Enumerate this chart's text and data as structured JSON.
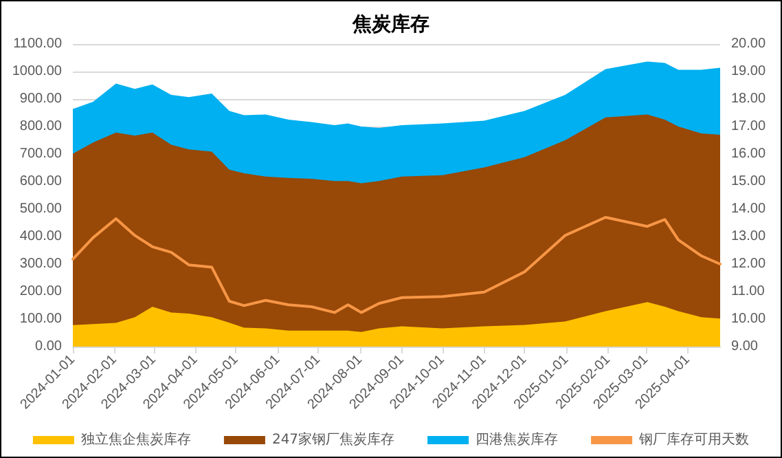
{
  "chart_data": {
    "type": "area",
    "title": "焦炭库存",
    "stacked": true,
    "x": [
      "2024-01-01",
      "2024-01-16",
      "2024-02-02",
      "2024-02-16",
      "2024-02-29",
      "2024-03-14",
      "2024-03-27",
      "2024-04-13",
      "2024-04-26",
      "2024-05-07",
      "2024-05-23",
      "2024-06-09",
      "2024-06-26",
      "2024-07-13",
      "2024-07-23",
      "2024-08-02",
      "2024-08-15",
      "2024-09-01",
      "2024-10-01",
      "2024-11-01",
      "2024-12-01",
      "2024-12-31",
      "2025-01-30",
      "2025-03-02",
      "2025-03-15",
      "2025-03-25",
      "2025-04-11",
      "2025-04-25"
    ],
    "series": [
      {
        "name": "独立焦企焦炭库存",
        "color": "#ffc000",
        "values": [
          78,
          82,
          86,
          107,
          145,
          124,
          120,
          107,
          87,
          69,
          66,
          58,
          58,
          58,
          58,
          53,
          66,
          74,
          66,
          74,
          79,
          91,
          129,
          162,
          145,
          129,
          107,
          102
        ]
      },
      {
        "name": "247家钢厂焦炭库存",
        "color": "#984807",
        "values": [
          623,
          660,
          692,
          660,
          633,
          610,
          597,
          602,
          556,
          561,
          552,
          555,
          552,
          544,
          544,
          541,
          536,
          544,
          557,
          577,
          610,
          659,
          704,
          682,
          680,
          671,
          668,
          668
        ]
      },
      {
        "name": "四港焦炭库存",
        "color": "#00b0f0",
        "values": [
          163,
          148,
          178,
          170,
          175,
          181,
          190,
          211,
          214,
          211,
          226,
          212,
          206,
          203,
          209,
          206,
          193,
          187,
          188,
          170,
          168,
          165,
          176,
          192,
          206,
          206,
          231,
          244
        ]
      },
      {
        "name": "钢厂库存可用天数",
        "type": "line",
        "axis": "y2",
        "color": "#f79646",
        "values": [
          12.18,
          12.96,
          13.65,
          13.04,
          12.63,
          12.43,
          11.97,
          11.89,
          10.65,
          10.49,
          10.68,
          10.52,
          10.45,
          10.24,
          10.52,
          10.24,
          10.57,
          10.78,
          10.82,
          10.98,
          11.72,
          13.04,
          13.7,
          13.37,
          13.62,
          12.88,
          12.3,
          12.0
        ]
      }
    ],
    "xlim": [
      "2024-01-01",
      "2025-04-25"
    ],
    "xticks": [
      "2024-01-01",
      "2024-02-01",
      "2024-03-01",
      "2024-04-01",
      "2024-05-01",
      "2024-06-01",
      "2024-07-01",
      "2024-08-01",
      "2024-09-01",
      "2024-10-01",
      "2024-11-01",
      "2024-12-01",
      "2025-01-01",
      "2025-02-01",
      "2025-03-01",
      "2025-04-01"
    ],
    "ylim": [
      0,
      1100
    ],
    "yticks": [
      {
        "value": 0,
        "label": "0.00"
      },
      {
        "value": 100,
        "label": "100.00"
      },
      {
        "value": 200,
        "label": "200.00"
      },
      {
        "value": 300,
        "label": "300.00"
      },
      {
        "value": 400,
        "label": "400.00"
      },
      {
        "value": 500,
        "label": "500.00"
      },
      {
        "value": 600,
        "label": "600.00"
      },
      {
        "value": 700,
        "label": "700.00"
      },
      {
        "value": 800,
        "label": "800.00"
      },
      {
        "value": 900,
        "label": "900.00"
      },
      {
        "value": 1000,
        "label": "1000.00"
      },
      {
        "value": 1100,
        "label": "1100.00"
      }
    ],
    "y2lim": [
      9,
      20
    ],
    "y2ticks": [
      {
        "value": 9,
        "label": "9.00"
      },
      {
        "value": 10,
        "label": "10.00"
      },
      {
        "value": 11,
        "label": "11.00"
      },
      {
        "value": 12,
        "label": "12.00"
      },
      {
        "value": 13,
        "label": "13.00"
      },
      {
        "value": 14,
        "label": "14.00"
      },
      {
        "value": 15,
        "label": "15.00"
      },
      {
        "value": 16,
        "label": "16.00"
      },
      {
        "value": 17,
        "label": "17.00"
      },
      {
        "value": 18,
        "label": "18.00"
      },
      {
        "value": 19,
        "label": "19.00"
      },
      {
        "value": 20,
        "label": "20.00"
      }
    ],
    "grid": "y",
    "legend": "bottom",
    "marker": "none"
  }
}
